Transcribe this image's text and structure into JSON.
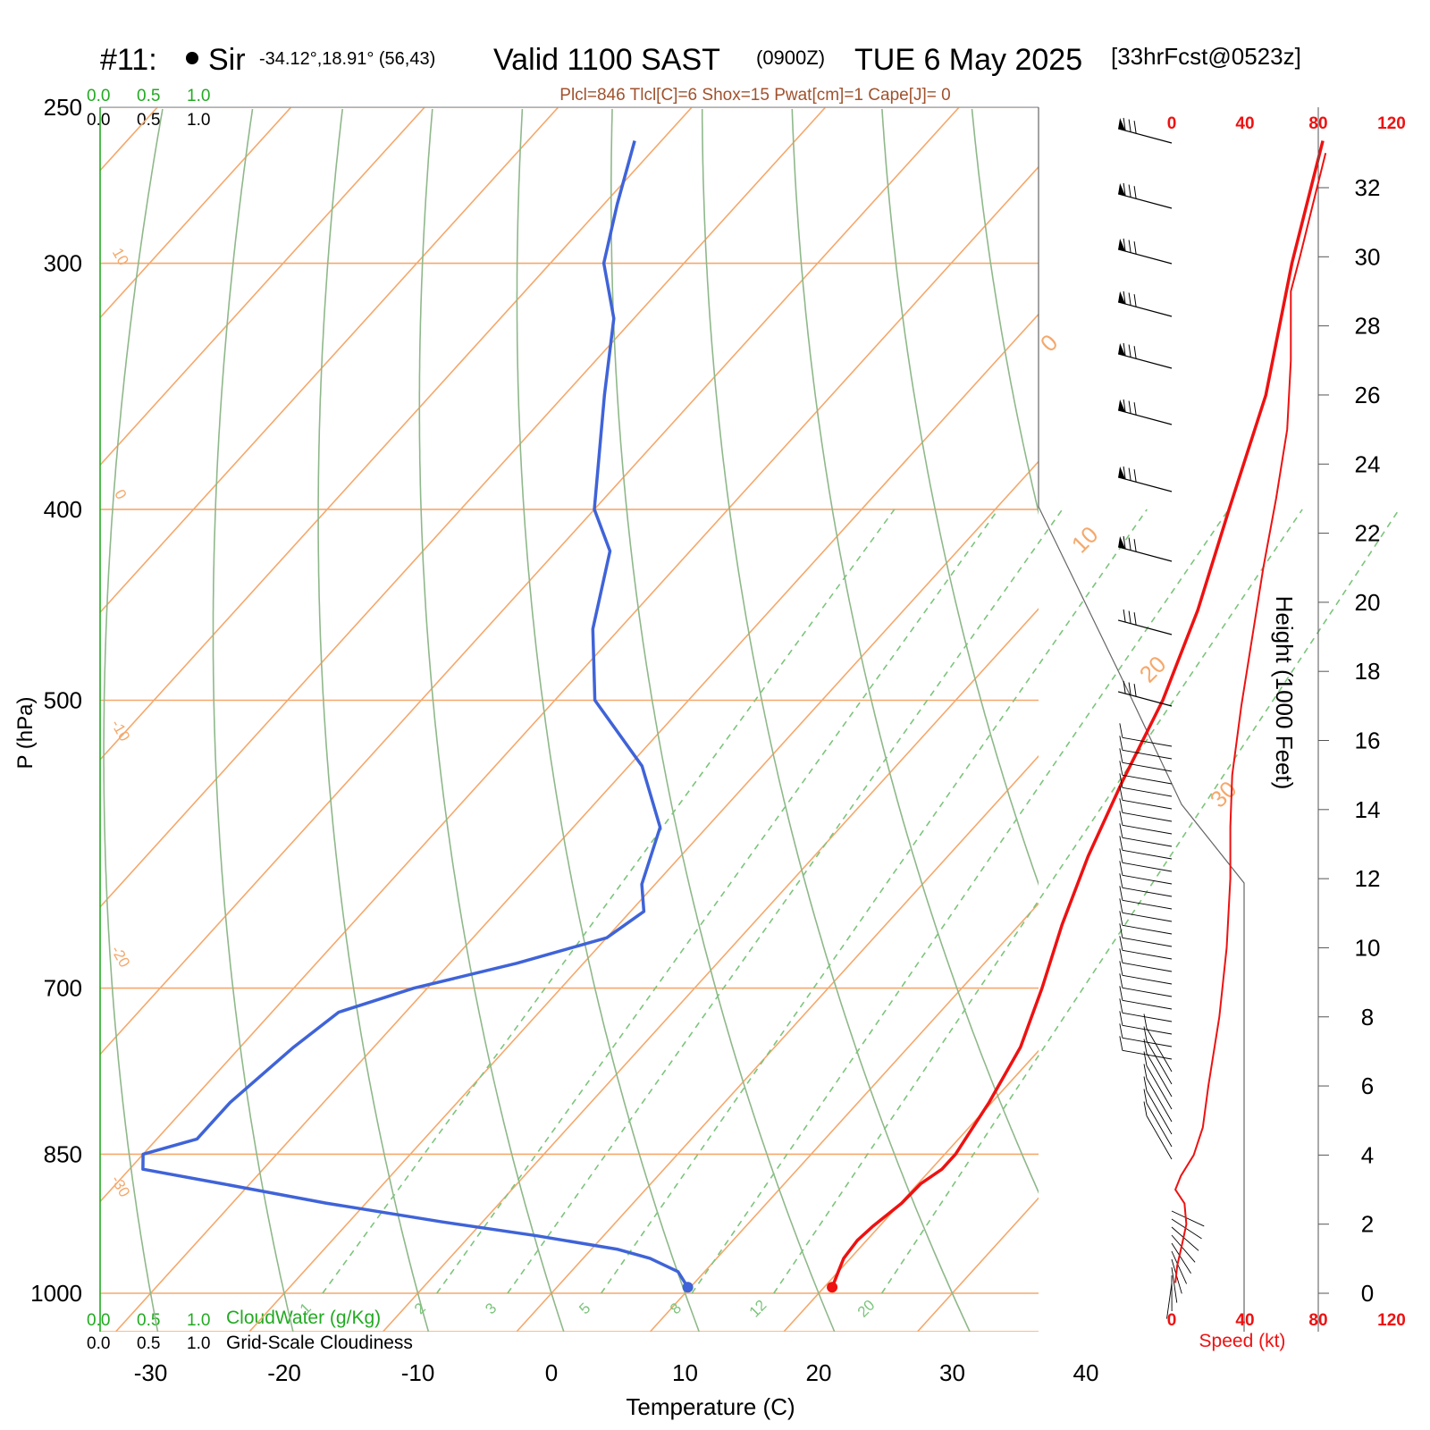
{
  "header": {
    "station_id": "#11:",
    "station_name": "Sir",
    "coords": "-34.12°,18.91° (56,43)",
    "valid": "Valid 1100 SAST",
    "zulu": "(0900Z)",
    "date": "TUE 6 May 2025",
    "forecast": "[33hrFcst@0523z]",
    "indices": "Plcl=846 Tlcl[C]=6 Shox=15 Pwat[cm]=1 Cape[J]= 0"
  },
  "cloud_scale": {
    "top_green": [
      "0.0",
      "0.5",
      "1.0"
    ],
    "top_black": [
      "0.0",
      "0.5",
      "1.0"
    ],
    "bottom_green": [
      "0.0",
      "0.5",
      "1.0"
    ],
    "bottom_green_label": "CloudWater (g/Kg)",
    "bottom_black": [
      "0.0",
      "0.5",
      "1.0"
    ],
    "bottom_black_label": "Grid-Scale Cloudiness"
  },
  "colors": {
    "isotherm": "#f5a86b",
    "dry_adiabat": "#8fb88a",
    "mixing_ratio": "#7cc47c",
    "temperature": "#ee1111",
    "dewpoint": "#3f63d8",
    "speed": "#ee1111",
    "indices": "#a0522d",
    "cloud_green": "#22aa22"
  },
  "chart_data": [
    {
      "type": "line",
      "title": "",
      "xlabel": "Temperature (C)",
      "ylabel": "P (hPa)",
      "x_ticks": [
        "-30",
        "-20",
        "-10",
        "0",
        "10",
        "20",
        "30",
        "40"
      ],
      "y_ticks": [
        "250",
        "300",
        "400",
        "500",
        "700",
        "850",
        "1000"
      ],
      "isotherm_labels": [
        "10",
        "0",
        "-10",
        "-20",
        "-30",
        "0",
        "10",
        "20",
        "30"
      ],
      "mixing_ratio_labels": [
        "1",
        "2",
        "3",
        "5",
        "8",
        "12",
        "20"
      ],
      "series": [
        {
          "id": "temperature",
          "points": [
            {
              "p": 993,
              "t": 20.6
            },
            {
              "p": 975,
              "t": 20.0
            },
            {
              "p": 960,
              "t": 19.5
            },
            {
              "p": 940,
              "t": 19.3
            },
            {
              "p": 925,
              "t": 19.5
            },
            {
              "p": 900,
              "t": 20.1
            },
            {
              "p": 880,
              "t": 20.2
            },
            {
              "p": 865,
              "t": 20.8
            },
            {
              "p": 850,
              "t": 20.8
            },
            {
              "p": 800,
              "t": 19.8
            },
            {
              "p": 750,
              "t": 18.4
            },
            {
              "p": 700,
              "t": 16.0
            },
            {
              "p": 650,
              "t": 13.2
            },
            {
              "p": 600,
              "t": 10.5
            },
            {
              "p": 550,
              "t": 8.0
            },
            {
              "p": 500,
              "t": 5.5
            },
            {
              "p": 450,
              "t": 2.0
            },
            {
              "p": 400,
              "t": -2.5
            },
            {
              "p": 350,
              "t": -7.5
            },
            {
              "p": 300,
              "t": -14.5
            },
            {
              "p": 260,
              "t": -20.5
            }
          ]
        },
        {
          "id": "dewpoint",
          "points": [
            {
              "p": 993,
              "t": 9.8
            },
            {
              "p": 975,
              "t": 8.0
            },
            {
              "p": 960,
              "t": 5.0
            },
            {
              "p": 950,
              "t": 2.0
            },
            {
              "p": 935,
              "t": -5.0
            },
            {
              "p": 920,
              "t": -13.0
            },
            {
              "p": 900,
              "t": -23.0
            },
            {
              "p": 880,
              "t": -32.0
            },
            {
              "p": 865,
              "t": -39.0
            },
            {
              "p": 850,
              "t": -40.0
            },
            {
              "p": 835,
              "t": -37.0
            },
            {
              "p": 800,
              "t": -37.0
            },
            {
              "p": 750,
              "t": -36.0
            },
            {
              "p": 720,
              "t": -35.0
            },
            {
              "p": 700,
              "t": -31.0
            },
            {
              "p": 680,
              "t": -25.0
            },
            {
              "p": 660,
              "t": -20.0
            },
            {
              "p": 640,
              "t": -19.0
            },
            {
              "p": 620,
              "t": -21.0
            },
            {
              "p": 580,
              "t": -23.5
            },
            {
              "p": 540,
              "t": -29.0
            },
            {
              "p": 500,
              "t": -37.0
            },
            {
              "p": 460,
              "t": -42.0
            },
            {
              "p": 420,
              "t": -46.0
            },
            {
              "p": 400,
              "t": -50.0
            },
            {
              "p": 350,
              "t": -57.0
            },
            {
              "p": 320,
              "t": -61.5
            },
            {
              "p": 300,
              "t": -66.0
            },
            {
              "p": 280,
              "t": -69.0
            },
            {
              "p": 260,
              "t": -72.0
            }
          ]
        }
      ]
    },
    {
      "type": "line",
      "title": "",
      "xlabel": "Speed (kt)",
      "ylabel": "Height (1000 Feet)",
      "x_ticks": [
        "0",
        "40",
        "80",
        "120"
      ],
      "y_ticks": [
        "0",
        "2",
        "4",
        "6",
        "8",
        "10",
        "12",
        "14",
        "16",
        "18",
        "20",
        "22",
        "24",
        "26",
        "28",
        "30",
        "32"
      ],
      "xlim": [
        0,
        120
      ],
      "ylim": [
        0,
        33
      ],
      "series": [
        {
          "id": "wind-speed",
          "points": [
            {
              "h": 0.3,
              "s": 2
            },
            {
              "h": 0.8,
              "s": 3
            },
            {
              "h": 1.5,
              "s": 6
            },
            {
              "h": 2.0,
              "s": 8
            },
            {
              "h": 2.6,
              "s": 7
            },
            {
              "h": 3.0,
              "s": 2
            },
            {
              "h": 3.4,
              "s": 5
            },
            {
              "h": 4.0,
              "s": 12
            },
            {
              "h": 4.8,
              "s": 17
            },
            {
              "h": 6.0,
              "s": 20
            },
            {
              "h": 8.0,
              "s": 26
            },
            {
              "h": 10.0,
              "s": 30
            },
            {
              "h": 12.0,
              "s": 32
            },
            {
              "h": 13.5,
              "s": 32
            },
            {
              "h": 15.0,
              "s": 33
            },
            {
              "h": 17.0,
              "s": 38
            },
            {
              "h": 19.0,
              "s": 44
            },
            {
              "h": 21.0,
              "s": 50
            },
            {
              "h": 23.0,
              "s": 57
            },
            {
              "h": 25.0,
              "s": 63
            },
            {
              "h": 27.0,
              "s": 65
            },
            {
              "h": 29.0,
              "s": 65
            },
            {
              "h": 30.0,
              "s": 70
            },
            {
              "h": 31.5,
              "s": 77
            },
            {
              "h": 33.0,
              "s": 84
            }
          ]
        }
      ]
    }
  ]
}
